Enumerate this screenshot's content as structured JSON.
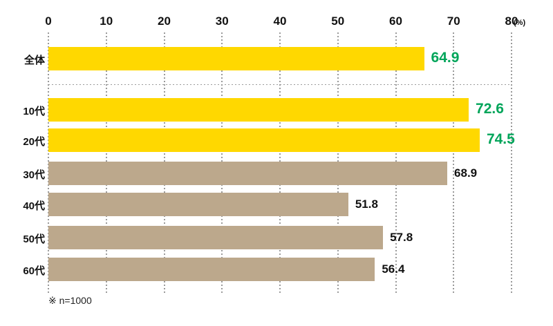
{
  "chart_data": {
    "type": "bar",
    "orientation": "horizontal",
    "title": "",
    "xlabel": "",
    "ylabel": "",
    "xlim": [
      0,
      80
    ],
    "x_ticks": [
      0,
      10,
      20,
      30,
      40,
      50,
      60,
      70,
      80
    ],
    "unit_label": "(%)",
    "grid": "dotted-vertical",
    "rows": [
      {
        "label": "全体",
        "value": 64.9,
        "highlight": true
      },
      {
        "label": "10代",
        "value": 72.6,
        "highlight": true
      },
      {
        "label": "20代",
        "value": 74.5,
        "highlight": true
      },
      {
        "label": "30代",
        "value": 68.9,
        "highlight": false
      },
      {
        "label": "40代",
        "value": 51.8,
        "highlight": false
      },
      {
        "label": "50代",
        "value": 57.8,
        "highlight": false
      },
      {
        "label": "60代",
        "value": 56.4,
        "highlight": false
      }
    ],
    "footnote": "※ n=1000",
    "colors": {
      "bar_highlight": "#FFD800",
      "bar_default": "#BCA88C",
      "value_highlight": "#00A55A",
      "value_default": "#111111",
      "gridline": "#999999"
    }
  }
}
